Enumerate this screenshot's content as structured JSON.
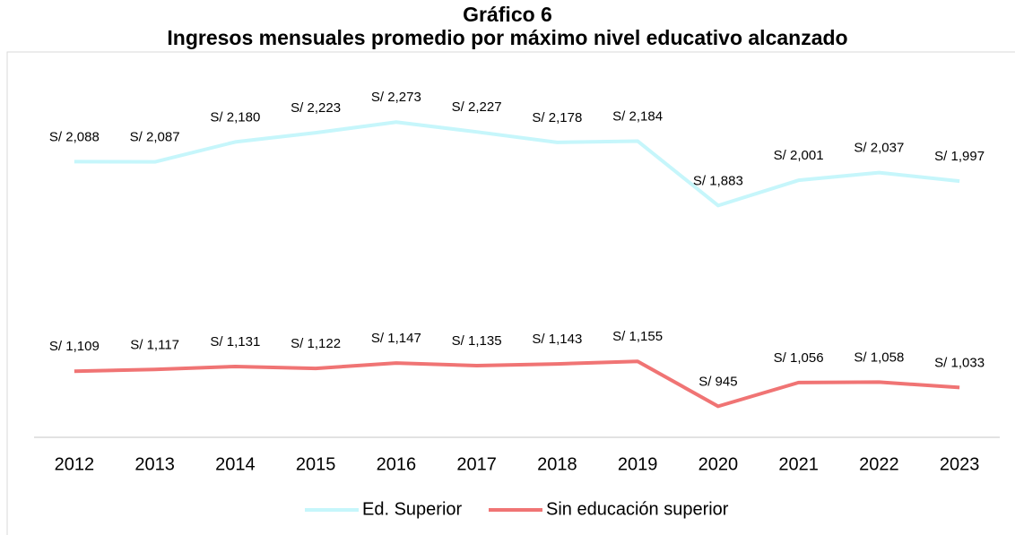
{
  "chart_data": {
    "type": "line",
    "title": "Gráfico 6",
    "subtitle": "Ingresos mensuales promedio por máximo nivel educativo alcanzado",
    "categories": [
      "2012",
      "2013",
      "2014",
      "2015",
      "2016",
      "2017",
      "2018",
      "2019",
      "2020",
      "2021",
      "2022",
      "2023"
    ],
    "ylim": [
      800,
      2500
    ],
    "series": [
      {
        "name": "Ed. Superior",
        "color": "#c6f6fb",
        "values": [
          2088,
          2087,
          2180,
          2223,
          2273,
          2227,
          2178,
          2184,
          1883,
          2001,
          2037,
          1997
        ],
        "value_labels": [
          "S/ 2,088",
          "S/ 2,087",
          "S/ 2,180",
          "S/ 2,223",
          "S/ 2,273",
          "S/ 2,227",
          "S/ 2,178",
          "S/ 2,184",
          "S/ 1,883",
          "S/ 2,001",
          "S/ 2,037",
          "S/ 1,997"
        ]
      },
      {
        "name": "Sin educación superior",
        "color": "#f07474",
        "values": [
          1109,
          1117,
          1131,
          1122,
          1147,
          1135,
          1143,
          1155,
          945,
          1056,
          1058,
          1033
        ],
        "value_labels": [
          "S/ 1,109",
          "S/ 1,117",
          "S/ 1,131",
          "S/ 1,122",
          "S/ 1,147",
          "S/ 1,135",
          "S/ 1,143",
          "S/ 1,155",
          "S/ 945",
          "S/ 1,056",
          "S/ 1,058",
          "S/ 1,033"
        ]
      }
    ],
    "legend": "bottom"
  }
}
